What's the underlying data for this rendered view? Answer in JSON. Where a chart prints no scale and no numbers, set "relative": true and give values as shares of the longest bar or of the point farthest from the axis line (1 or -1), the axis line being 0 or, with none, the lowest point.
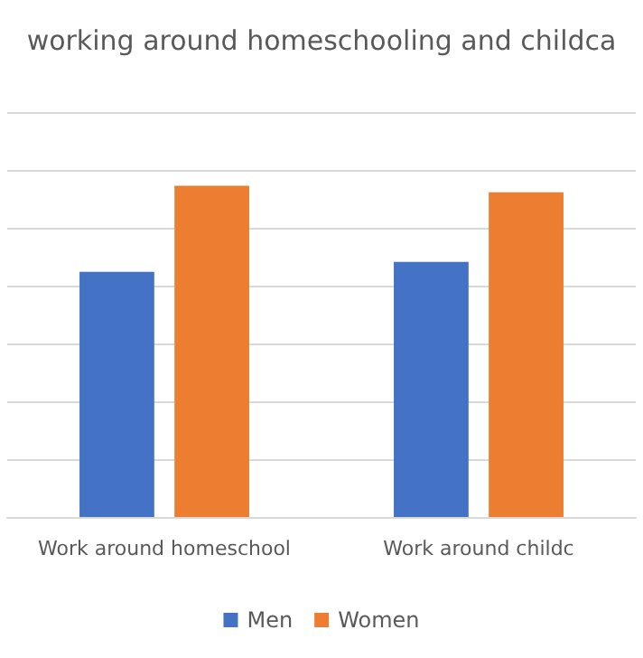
{
  "chart_data": {
    "type": "bar",
    "title": "working around homeschooling and childca",
    "categories": [
      "Work around homeschool",
      "Work around childc"
    ],
    "relative": true,
    "series": [
      {
        "name": "Men",
        "color": "#4472c4",
        "values": [
          0.74,
          0.77
        ]
      },
      {
        "name": "Women",
        "color": "#ed7d31",
        "values": [
          1,
          0.98
        ]
      }
    ],
    "grid": "y",
    "legend": "bottom"
  }
}
